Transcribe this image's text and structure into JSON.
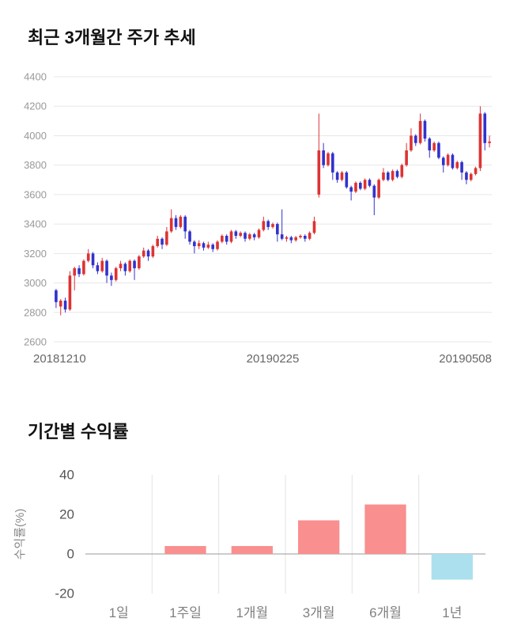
{
  "chart_data": [
    {
      "type": "candlestick",
      "title": "최근 3개월간 주가 추세",
      "ylim": [
        2600,
        4400
      ],
      "y_ticks": [
        2600,
        2800,
        3000,
        3200,
        3400,
        3600,
        3800,
        4000,
        4200,
        4400
      ],
      "x_labels": [
        "20181210",
        "20190225",
        "20190508"
      ],
      "up_color": "#dd3333",
      "down_color": "#3232cc",
      "grid_color": "#e7e7e7",
      "tick_color": "#999999",
      "x_label_color": "#666666",
      "candles": [
        [
          2950,
          2960,
          2830,
          2870
        ],
        [
          2840,
          2890,
          2780,
          2880
        ],
        [
          2880,
          2900,
          2800,
          2820
        ],
        [
          2820,
          3080,
          2810,
          3050
        ],
        [
          3050,
          3110,
          2950,
          3100
        ],
        [
          3100,
          3120,
          3040,
          3060
        ],
        [
          3060,
          3160,
          3050,
          3150
        ],
        [
          3150,
          3230,
          3140,
          3200
        ],
        [
          3200,
          3210,
          3100,
          3120
        ],
        [
          3120,
          3140,
          3060,
          3080
        ],
        [
          3080,
          3170,
          3070,
          3150
        ],
        [
          3150,
          3160,
          3000,
          3050
        ],
        [
          3050,
          3070,
          2980,
          3020
        ],
        [
          3020,
          3110,
          3010,
          3100
        ],
        [
          3100,
          3150,
          3080,
          3130
        ],
        [
          3130,
          3140,
          3050,
          3080
        ],
        [
          3080,
          3160,
          3070,
          3150
        ],
        [
          3150,
          3160,
          3020,
          3100
        ],
        [
          3100,
          3190,
          3090,
          3180
        ],
        [
          3180,
          3240,
          3170,
          3220
        ],
        [
          3220,
          3230,
          3150,
          3180
        ],
        [
          3180,
          3260,
          3170,
          3250
        ],
        [
          3250,
          3320,
          3240,
          3300
        ],
        [
          3300,
          3310,
          3230,
          3260
        ],
        [
          3260,
          3380,
          3250,
          3350
        ],
        [
          3350,
          3500,
          3340,
          3440
        ],
        [
          3440,
          3460,
          3360,
          3380
        ],
        [
          3380,
          3460,
          3370,
          3450
        ],
        [
          3450,
          3460,
          3300,
          3350
        ],
        [
          3350,
          3360,
          3260,
          3280
        ],
        [
          3280,
          3290,
          3200,
          3250
        ],
        [
          3250,
          3290,
          3230,
          3270
        ],
        [
          3270,
          3280,
          3220,
          3240
        ],
        [
          3240,
          3280,
          3230,
          3260
        ],
        [
          3260,
          3270,
          3210,
          3230
        ],
        [
          3230,
          3290,
          3220,
          3280
        ],
        [
          3280,
          3330,
          3270,
          3320
        ],
        [
          3320,
          3330,
          3260,
          3280
        ],
        [
          3280,
          3360,
          3270,
          3350
        ],
        [
          3350,
          3360,
          3300,
          3320
        ],
        [
          3320,
          3350,
          3310,
          3340
        ],
        [
          3340,
          3350,
          3280,
          3300
        ],
        [
          3300,
          3340,
          3290,
          3330
        ],
        [
          3330,
          3340,
          3290,
          3310
        ],
        [
          3310,
          3370,
          3300,
          3360
        ],
        [
          3360,
          3450,
          3350,
          3420
        ],
        [
          3420,
          3430,
          3360,
          3380
        ],
        [
          3380,
          3410,
          3370,
          3400
        ],
        [
          3400,
          3410,
          3280,
          3330
        ],
        [
          3330,
          3500,
          3290,
          3300
        ],
        [
          3300,
          3320,
          3280,
          3310
        ],
        [
          3310,
          3320,
          3270,
          3290
        ],
        [
          3290,
          3320,
          3280,
          3310
        ],
        [
          3310,
          3330,
          3300,
          3320
        ],
        [
          3320,
          3330,
          3280,
          3300
        ],
        [
          3300,
          3350,
          3290,
          3340
        ],
        [
          3340,
          3450,
          3330,
          3420
        ],
        [
          3600,
          4150,
          3580,
          3900
        ],
        [
          3900,
          3950,
          3780,
          3800
        ],
        [
          3800,
          3890,
          3790,
          3880
        ],
        [
          3880,
          3890,
          3700,
          3750
        ],
        [
          3750,
          3760,
          3680,
          3700
        ],
        [
          3700,
          3760,
          3690,
          3750
        ],
        [
          3750,
          3760,
          3640,
          3650
        ],
        [
          3650,
          3660,
          3560,
          3620
        ],
        [
          3620,
          3690,
          3610,
          3680
        ],
        [
          3680,
          3690,
          3630,
          3640
        ],
        [
          3640,
          3710,
          3630,
          3700
        ],
        [
          3700,
          3710,
          3650,
          3660
        ],
        [
          3660,
          3670,
          3460,
          3580
        ],
        [
          3580,
          3710,
          3570,
          3700
        ],
        [
          3700,
          3780,
          3690,
          3750
        ],
        [
          3750,
          3760,
          3690,
          3700
        ],
        [
          3700,
          3770,
          3690,
          3760
        ],
        [
          3760,
          3770,
          3710,
          3720
        ],
        [
          3720,
          3810,
          3710,
          3800
        ],
        [
          3800,
          3950,
          3790,
          3900
        ],
        [
          3900,
          4050,
          3890,
          4000
        ],
        [
          4000,
          4010,
          3930,
          3950
        ],
        [
          3950,
          4150,
          3940,
          4100
        ],
        [
          4100,
          4110,
          3960,
          3980
        ],
        [
          3980,
          3990,
          3850,
          3900
        ],
        [
          3900,
          3960,
          3890,
          3950
        ],
        [
          3950,
          3960,
          3840,
          3850
        ],
        [
          3850,
          3860,
          3750,
          3800
        ],
        [
          3800,
          3880,
          3790,
          3870
        ],
        [
          3870,
          3880,
          3770,
          3780
        ],
        [
          3780,
          3830,
          3770,
          3820
        ],
        [
          3820,
          3830,
          3700,
          3750
        ],
        [
          3750,
          3760,
          3670,
          3700
        ],
        [
          3700,
          3750,
          3690,
          3740
        ],
        [
          3740,
          3790,
          3730,
          3780
        ],
        [
          3780,
          4200,
          3760,
          4150
        ],
        [
          4150,
          4160,
          3900,
          3950
        ],
        [
          3950,
          4000,
          3920,
          3960
        ]
      ]
    },
    {
      "type": "bar",
      "title": "기간별 수익률",
      "ylabel": "수익률(%)",
      "categories": [
        "1일",
        "1주일",
        "1개월",
        "3개월",
        "6개월",
        "1년"
      ],
      "values": [
        0,
        4,
        4,
        17,
        25,
        -13
      ],
      "ylim": [
        -20,
        40
      ],
      "y_ticks": [
        -20,
        0,
        20,
        40
      ],
      "positive_color": "#f98f8f",
      "negative_color": "#ace0ee",
      "grid_color": "#e3e3e3",
      "zero_line_color": "#9a9a9a",
      "tick_color": "#555555",
      "category_color": "#808080",
      "ylabel_color": "#888888",
      "legend": "none",
      "grid": "vertical-only"
    }
  ]
}
